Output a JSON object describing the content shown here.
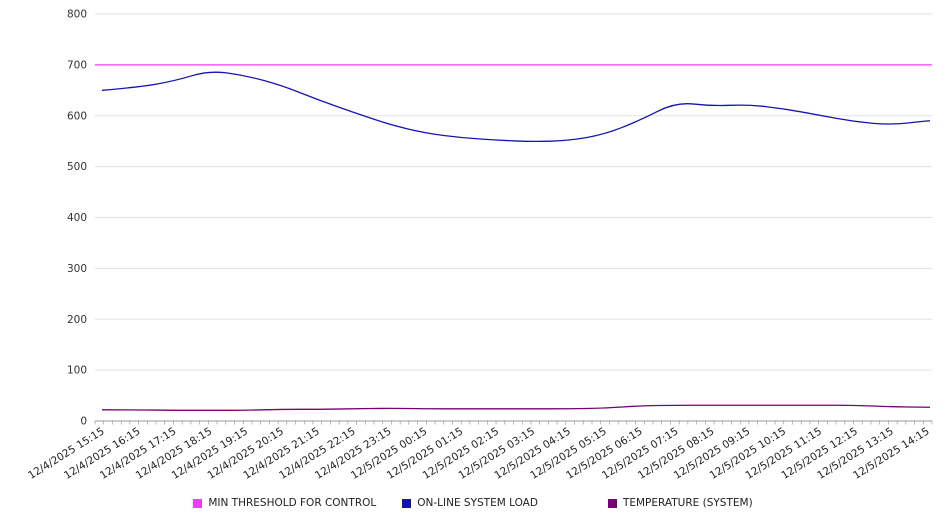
{
  "chart_data": {
    "type": "line",
    "title": "",
    "xlabel": "",
    "ylabel": "",
    "ylim": [
      0,
      800
    ],
    "y_ticks": [
      0,
      100,
      200,
      300,
      400,
      500,
      600,
      700,
      800
    ],
    "grid": true,
    "legend_position": "bottom",
    "x_labels": [
      "12/4/2025 15:15",
      "12/4/2025 16:15",
      "12/4/2025 17:15",
      "12/4/2025 18:15",
      "12/4/2025 19:15",
      "12/4/2025 20:15",
      "12/4/2025 21:15",
      "12/4/2025 22:15",
      "12/4/2025 23:15",
      "12/5/2025 00:15",
      "12/5/2025 01:15",
      "12/5/2025 02:15",
      "12/5/2025 03:15",
      "12/5/2025 04:15",
      "12/5/2025 05:15",
      "12/5/2025 06:15",
      "12/5/2025 07:15",
      "12/5/2025 08:15",
      "12/5/2025 09:15",
      "12/5/2025 10:15",
      "12/5/2025 11:15",
      "12/5/2025 12:15",
      "12/5/2025 13:15",
      "12/5/2025 14:15"
    ],
    "series": [
      {
        "name": "MIN THRESHOLD FOR CONTROL",
        "color": "#f23cf2",
        "values": [
          700,
          700,
          700,
          700,
          700,
          700,
          700,
          700,
          700,
          700,
          700,
          700,
          700,
          700,
          700,
          700,
          700,
          700,
          700,
          700,
          700,
          700,
          700,
          700
        ]
      },
      {
        "name": "ON-LINE SYSTEM LOAD",
        "color": "#1414b4",
        "values": [
          650,
          656,
          668,
          689,
          679,
          660,
          632,
          607,
          583,
          566,
          557,
          552,
          549,
          551,
          563,
          591,
          627,
          619,
          622,
          614,
          601,
          588,
          582,
          590
        ]
      },
      {
        "name": "TEMPERATURE (SYSTEM)",
        "color": "#760076",
        "values": [
          22,
          22,
          21,
          21,
          21,
          23,
          23,
          24,
          25,
          24,
          24,
          24,
          24,
          24,
          25,
          30,
          31,
          31,
          31,
          31,
          31,
          31,
          28,
          27
        ]
      }
    ]
  },
  "legend": {
    "items": [
      {
        "label": "MIN THRESHOLD FOR CONTROL"
      },
      {
        "label": "ON-LINE SYSTEM LOAD"
      },
      {
        "label": "TEMPERATURE (SYSTEM)"
      }
    ]
  }
}
